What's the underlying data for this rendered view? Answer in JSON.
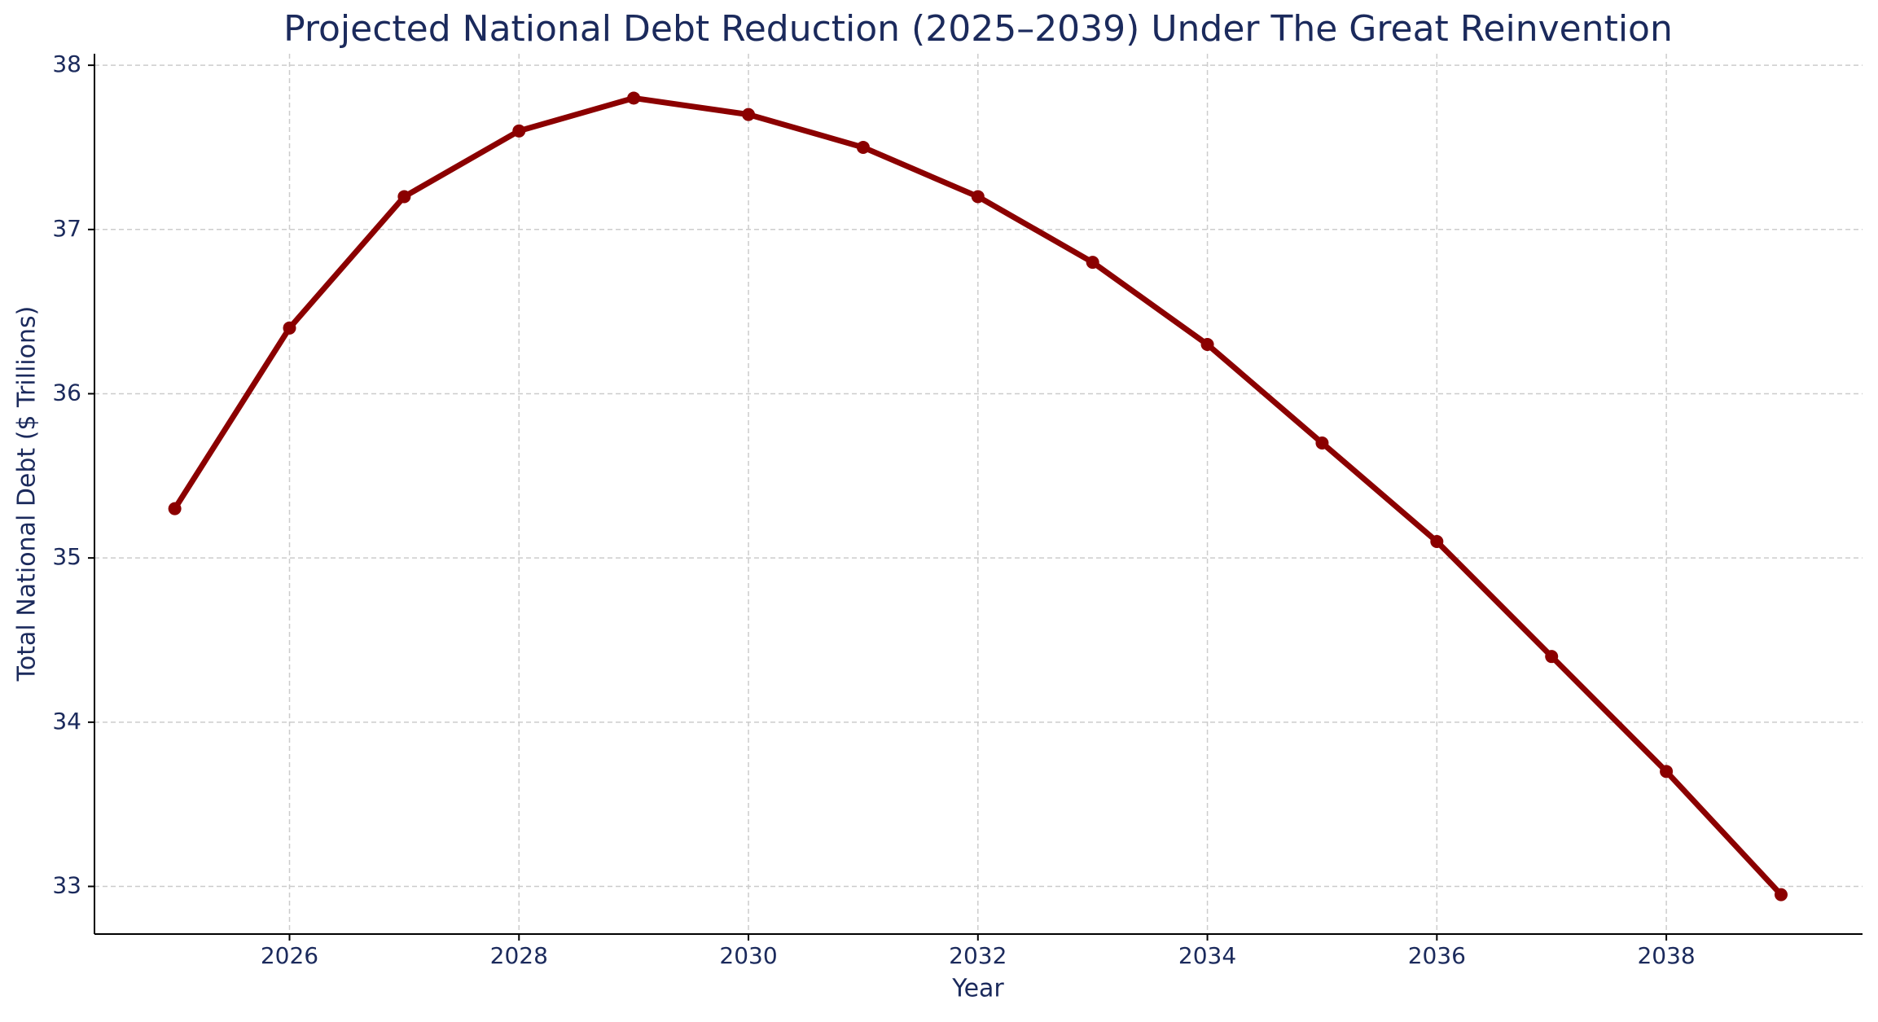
{
  "chart_data": {
    "type": "line",
    "title": "Projected National Debt Reduction (2025–2039) Under The Great Reinvention",
    "x_label": "Year",
    "y_label": "Total National Debt ($ Trillions)",
    "x": [
      2025,
      2026,
      2027,
      2028,
      2029,
      2030,
      2031,
      2032,
      2033,
      2034,
      2035,
      2036,
      2037,
      2038,
      2039
    ],
    "series": [
      {
        "name": "Total National Debt",
        "color": "#8b0000",
        "values": [
          35.3,
          36.4,
          37.2,
          37.6,
          37.8,
          37.7,
          37.5,
          37.2,
          36.8,
          36.3,
          35.7,
          35.1,
          34.4,
          33.7,
          32.95
        ]
      }
    ],
    "xlim": [
      2024.3,
      2039.71
    ],
    "ylim": [
      32.71,
      38.07
    ],
    "xticks": [
      2026,
      2028,
      2030,
      2032,
      2034,
      2036,
      2038
    ],
    "yticks": [
      33,
      34,
      35,
      36,
      37,
      38
    ],
    "grid": true
  }
}
